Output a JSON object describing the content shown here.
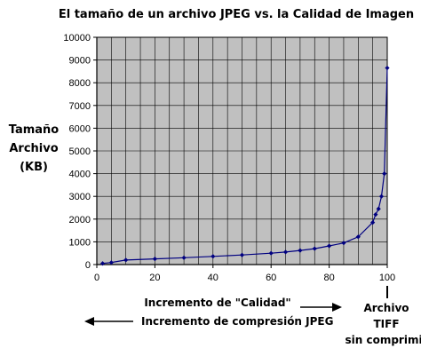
{
  "chart_data": {
    "type": "line",
    "title": "El tamaño de un archivo JPEG vs. la Calidad de Imagen",
    "ylabel_lines": [
      "Tamaño",
      "Archivo",
      "(KB)"
    ],
    "xlabel": "Incremento de \"Calidad\"",
    "annotation_compression": "Incremento de compresión JPEG",
    "annotation_tiff_lines": [
      "Archivo",
      "TIFF",
      "sin comprimir"
    ],
    "xlim": [
      0,
      100
    ],
    "ylim": [
      0,
      10000
    ],
    "x_ticks": [
      0,
      20,
      40,
      60,
      80,
      100
    ],
    "y_ticks": [
      0,
      1000,
      2000,
      3000,
      4000,
      5000,
      6000,
      7000,
      8000,
      9000,
      10000
    ],
    "grid": true,
    "series": [
      {
        "color": "#000080",
        "x": [
          2,
          5,
          10,
          20,
          30,
          40,
          50,
          60,
          65,
          70,
          75,
          80,
          85,
          90,
          95,
          96,
          97,
          98,
          99,
          100
        ],
        "y": [
          50,
          90,
          200,
          250,
          300,
          360,
          420,
          500,
          550,
          620,
          700,
          820,
          950,
          1220,
          1850,
          2200,
          2450,
          3000,
          4000,
          8650
        ]
      }
    ],
    "colors": {
      "plot_background": "#c0c0c0",
      "grid": "#000000",
      "series": "#000080"
    }
  }
}
